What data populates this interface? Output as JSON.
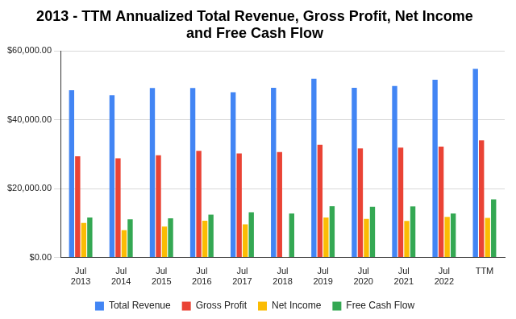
{
  "chart_data": {
    "type": "bar",
    "title": "2013 - TTM Annualized Total Revenue, Gross Profit, Net Income and Free Cash Flow",
    "categories": [
      "Jul 2013",
      "Jul 2014",
      "Jul 2015",
      "Jul 2016",
      "Jul 2017",
      "Jul 2018",
      "Jul 2019",
      "Jul 2020",
      "Jul 2021",
      "Jul 2022",
      "TTM"
    ],
    "series": [
      {
        "name": "Total Revenue",
        "color": "#4285f4",
        "values": [
          48600,
          47100,
          49200,
          49200,
          48000,
          49300,
          51900,
          49300,
          49800,
          51600,
          54800
        ]
      },
      {
        "name": "Gross Profit",
        "color": "#ea4335",
        "values": [
          29400,
          28800,
          29700,
          31000,
          30200,
          30600,
          32700,
          31700,
          31900,
          32200,
          34000
        ]
      },
      {
        "name": "Net Income",
        "color": "#fbbc04",
        "values": [
          10000,
          7900,
          9000,
          10700,
          9600,
          100,
          11600,
          11200,
          10600,
          11800,
          11500
        ]
      },
      {
        "name": "Free Cash Flow",
        "color": "#34a853",
        "values": [
          11600,
          11100,
          11400,
          12400,
          13100,
          12800,
          14900,
          14700,
          14800,
          12800,
          16900
        ]
      }
    ],
    "ylim": [
      0,
      60000
    ],
    "yticks": [
      {
        "value": 0,
        "label": "$0.00"
      },
      {
        "value": 20000,
        "label": "$20,000.00"
      },
      {
        "value": 40000,
        "label": "$40,000.00"
      },
      {
        "value": 60000,
        "label": "$60,000.00"
      }
    ],
    "grid": true,
    "legend": "bottom"
  }
}
